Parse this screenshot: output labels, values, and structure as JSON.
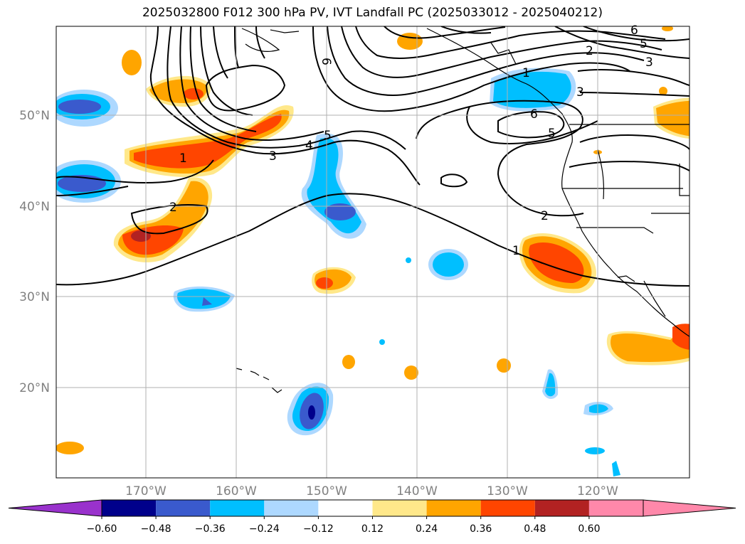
{
  "title": "2025032800 F012 300 hPa PV, IVT Landfall PC (2025033012 - 2025040212)",
  "map": {
    "lat_labels": [
      "50°N",
      "40°N",
      "30°N",
      "20°N"
    ],
    "lon_labels": [
      "170°W",
      "160°W",
      "150°W",
      "140°W",
      "130°W",
      "120°W"
    ],
    "grid": true
  },
  "contour_labels": [
    "6",
    "6",
    "5",
    "3",
    "2",
    "1",
    "3",
    "6",
    "5",
    "5",
    "4",
    "3",
    "1",
    "2",
    "2",
    "1"
  ],
  "colorbar": {
    "ticks": [
      "−0.60",
      "−0.48",
      "−0.36",
      "−0.24",
      "−0.12",
      "0.12",
      "0.24",
      "0.36",
      "0.48",
      "0.60"
    ],
    "colors": {
      "under": "#9932cc",
      "bins": [
        "#00008b",
        "#3a5acd",
        "#00bfff",
        "#add8ff",
        "#ffffff",
        "#ffe88a",
        "#ffa500",
        "#ff4500",
        "#b22222",
        "#ff88aa"
      ]
    }
  }
}
